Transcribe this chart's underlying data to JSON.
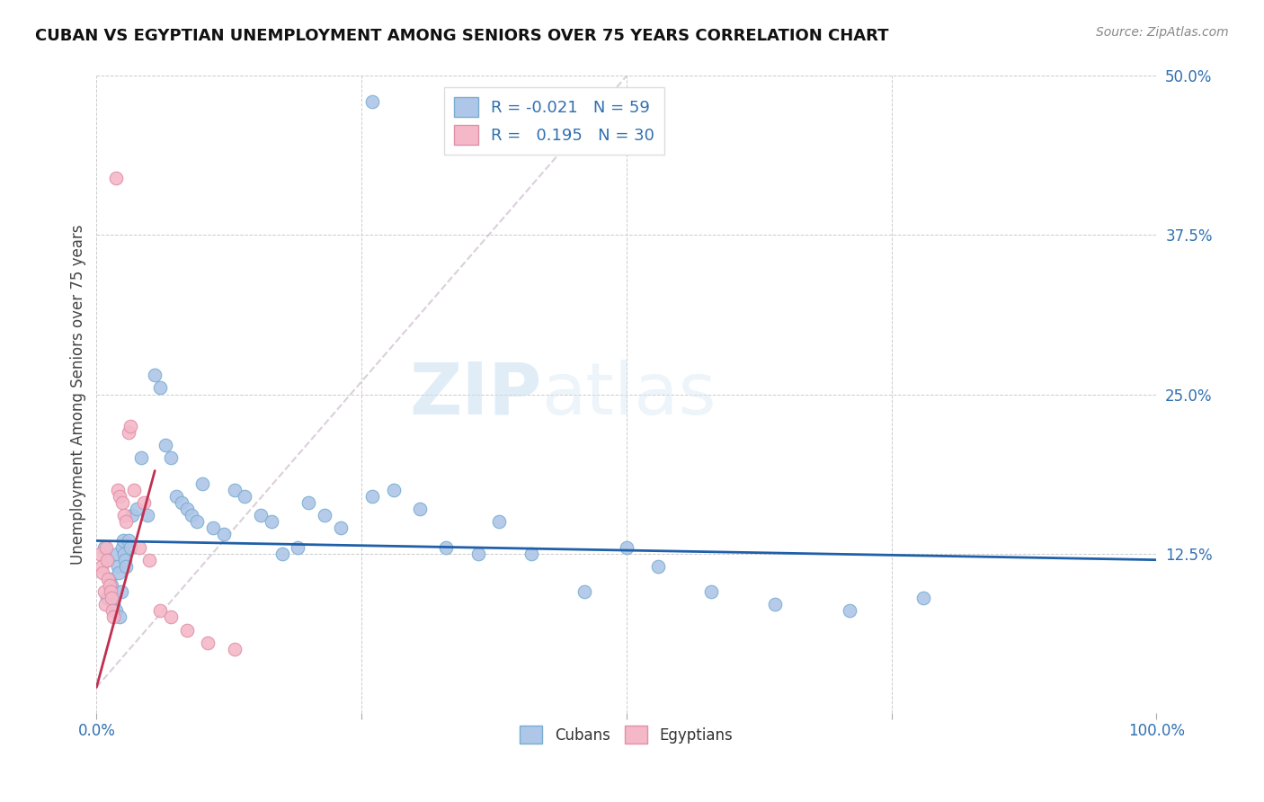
{
  "title": "CUBAN VS EGYPTIAN UNEMPLOYMENT AMONG SENIORS OVER 75 YEARS CORRELATION CHART",
  "source": "Source: ZipAtlas.com",
  "ylabel": "Unemployment Among Seniors over 75 years",
  "xlim": [
    0.0,
    1.0
  ],
  "ylim": [
    0.0,
    0.5
  ],
  "cuban_R": -0.021,
  "cuban_N": 59,
  "egyptian_R": 0.195,
  "egyptian_N": 30,
  "cuban_color": "#aec6e8",
  "cuban_edge": "#7aadd0",
  "egyptian_color": "#f4b8c8",
  "egyptian_edge": "#e090a8",
  "trend_cuban_color": "#2060a8",
  "trend_egyptian_color": "#c03050",
  "watermark": "ZIPatlas",
  "cubans_x": [
    0.007,
    0.01,
    0.01,
    0.012,
    0.014,
    0.016,
    0.018,
    0.019,
    0.02,
    0.021,
    0.022,
    0.023,
    0.024,
    0.025,
    0.026,
    0.027,
    0.028,
    0.03,
    0.032,
    0.034,
    0.038,
    0.042,
    0.048,
    0.055,
    0.06,
    0.065,
    0.07,
    0.075,
    0.08,
    0.085,
    0.09,
    0.095,
    0.1,
    0.11,
    0.12,
    0.13,
    0.14,
    0.155,
    0.165,
    0.175,
    0.19,
    0.2,
    0.215,
    0.23,
    0.26,
    0.28,
    0.305,
    0.33,
    0.36,
    0.38,
    0.41,
    0.46,
    0.5,
    0.53,
    0.58,
    0.64,
    0.71,
    0.78,
    0.26
  ],
  "cubans_y": [
    0.13,
    0.12,
    0.09,
    0.105,
    0.1,
    0.085,
    0.08,
    0.125,
    0.115,
    0.11,
    0.075,
    0.095,
    0.13,
    0.135,
    0.125,
    0.12,
    0.115,
    0.135,
    0.13,
    0.155,
    0.16,
    0.2,
    0.155,
    0.265,
    0.255,
    0.21,
    0.2,
    0.17,
    0.165,
    0.16,
    0.155,
    0.15,
    0.18,
    0.145,
    0.14,
    0.175,
    0.17,
    0.155,
    0.15,
    0.125,
    0.13,
    0.165,
    0.155,
    0.145,
    0.17,
    0.175,
    0.16,
    0.13,
    0.125,
    0.15,
    0.125,
    0.095,
    0.13,
    0.115,
    0.095,
    0.085,
    0.08,
    0.09,
    0.48
  ],
  "egyptians_x": [
    0.003,
    0.005,
    0.006,
    0.007,
    0.008,
    0.009,
    0.01,
    0.011,
    0.012,
    0.013,
    0.014,
    0.015,
    0.016,
    0.018,
    0.02,
    0.022,
    0.024,
    0.026,
    0.028,
    0.03,
    0.032,
    0.035,
    0.04,
    0.045,
    0.05,
    0.06,
    0.07,
    0.085,
    0.105,
    0.13
  ],
  "egyptians_y": [
    0.125,
    0.115,
    0.11,
    0.095,
    0.085,
    0.13,
    0.12,
    0.105,
    0.1,
    0.095,
    0.09,
    0.08,
    0.075,
    0.42,
    0.175,
    0.17,
    0.165,
    0.155,
    0.15,
    0.22,
    0.225,
    0.175,
    0.13,
    0.165,
    0.12,
    0.08,
    0.075,
    0.065,
    0.055,
    0.05
  ]
}
